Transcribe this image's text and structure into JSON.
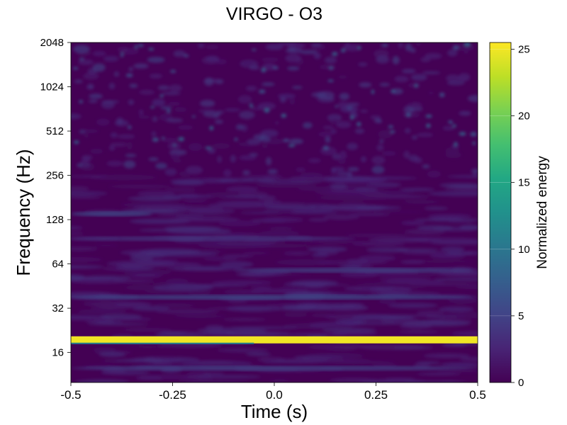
{
  "chart_data": {
    "type": "heatmap",
    "title": "VIRGO - O3",
    "xlabel": "Time (s)",
    "ylabel": "Frequency (Hz)",
    "xlim": [
      -0.5,
      0.5
    ],
    "ylim": [
      10,
      2048
    ],
    "y_scale": "log2",
    "x_ticks": [
      {
        "value": -0.5,
        "label": "-0.5"
      },
      {
        "value": -0.25,
        "label": "-0.25"
      },
      {
        "value": 0,
        "label": "0.0"
      },
      {
        "value": 0.25,
        "label": "0.25"
      },
      {
        "value": 0.5,
        "label": "0.5"
      }
    ],
    "y_ticks": [
      {
        "value": 16,
        "label": "16"
      },
      {
        "value": 32,
        "label": "32"
      },
      {
        "value": 64,
        "label": "64"
      },
      {
        "value": 128,
        "label": "128"
      },
      {
        "value": 256,
        "label": "256"
      },
      {
        "value": 512,
        "label": "512"
      },
      {
        "value": 1024,
        "label": "1024"
      },
      {
        "value": 2048,
        "label": "2048"
      }
    ],
    "colormap": "viridis",
    "colorbar": {
      "label": "Normalized energy",
      "range": [
        0,
        25.5
      ],
      "ticks": [
        {
          "value": 0,
          "label": "0"
        },
        {
          "value": 5,
          "label": "5"
        },
        {
          "value": 10,
          "label": "10"
        },
        {
          "value": 15,
          "label": "15"
        },
        {
          "value": 20,
          "label": "20"
        },
        {
          "value": 25,
          "label": "25"
        }
      ]
    },
    "features": [
      {
        "type": "line",
        "freq_hz": 19.5,
        "t_start": -0.5,
        "t_end": 0.5,
        "energy": 25
      },
      {
        "type": "band",
        "freq_hz": 38,
        "t_start": -0.5,
        "t_end": 0.5,
        "energy": 6
      },
      {
        "type": "band",
        "freq_hz": 58,
        "t_start": -0.1,
        "t_end": 0.5,
        "energy": 5
      },
      {
        "type": "band",
        "freq_hz": 95,
        "t_start": -0.5,
        "t_end": 0.2,
        "energy": 4
      },
      {
        "type": "band",
        "freq_hz": 140,
        "t_start": -0.5,
        "t_end": -0.3,
        "energy": 6
      },
      {
        "type": "band",
        "freq_hz": 12.5,
        "t_start": -0.5,
        "t_end": 0.5,
        "energy": 5
      }
    ],
    "background_energy": 1
  }
}
